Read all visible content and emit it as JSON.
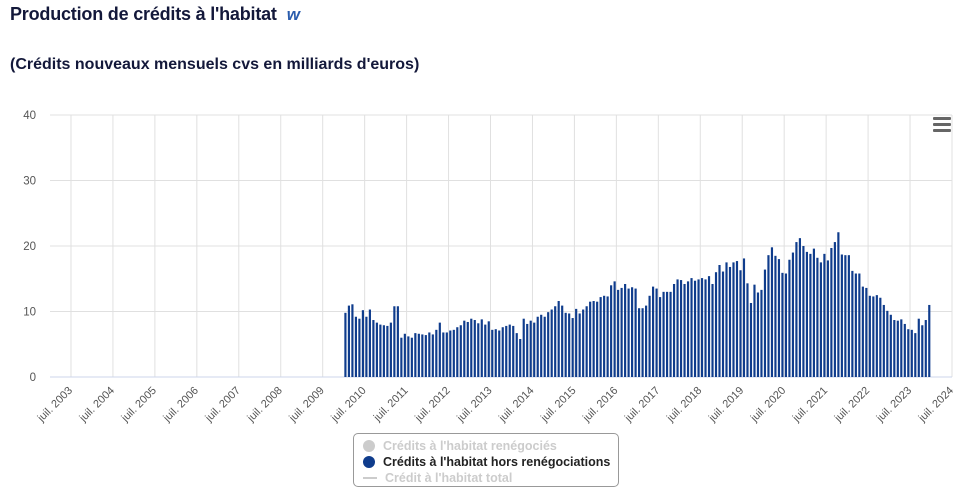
{
  "header": {
    "title": "Production de crédits à l'habitat",
    "icon": "w-logo-icon"
  },
  "subtitle": "(Crédits nouveaux mensuels cvs en milliards d'euros)",
  "colors": {
    "bar": "#0f3c8c",
    "grid": "#e0e0e0",
    "legend_active": "#0f3c8c",
    "legend_hidden": "#cccccc"
  },
  "menu": {
    "icon": "hamburger-menu-icon"
  },
  "legend": {
    "items": [
      {
        "label": "Crédits à l'habitat renégociés",
        "visible": false,
        "symbol": "circle"
      },
      {
        "label": "Crédits à l'habitat hors renégociations",
        "visible": true,
        "symbol": "circle"
      },
      {
        "label": "Crédit à l'habitat total",
        "visible": false,
        "symbol": "line"
      }
    ]
  },
  "chart_data": {
    "type": "bar",
    "ylim": [
      0,
      40
    ],
    "yticks": [
      "0",
      "10",
      "20",
      "30",
      "40"
    ],
    "xtick_labels": [
      "juil. 2003",
      "juil. 2004",
      "juil. 2005",
      "juil. 2006",
      "juil. 2007",
      "juil. 2008",
      "juil. 2009",
      "juil. 2010",
      "juil. 2011",
      "juil. 2012",
      "juil. 2013",
      "juil. 2014",
      "juil. 2015",
      "juil. 2016",
      "juil. 2017",
      "juil. 2018",
      "juil. 2019",
      "juil. 2020",
      "juil. 2021",
      "juil. 2022",
      "juil. 2023",
      "juil. 2024"
    ],
    "x_start": "2003-01",
    "x_end": "2024-07",
    "series": [
      {
        "name": "Crédits à l'habitat hors renégociations",
        "start": "2010-01",
        "values": [
          9.8,
          10.9,
          11.1,
          9.2,
          8.9,
          10.2,
          9.2,
          10.3,
          8.7,
          8.3,
          8.0,
          7.9,
          7.8,
          8.3,
          10.8,
          10.8,
          6.0,
          6.6,
          6.2,
          6.0,
          6.7,
          6.6,
          6.5,
          6.4,
          6.8,
          6.5,
          7.2,
          8.3,
          6.8,
          6.8,
          7.1,
          7.2,
          7.6,
          7.9,
          8.6,
          8.4,
          8.9,
          8.7,
          8.2,
          8.8,
          8.0,
          8.5,
          7.2,
          7.3,
          7.1,
          7.6,
          7.8,
          8.0,
          7.8,
          6.7,
          5.8,
          8.9,
          8.1,
          8.6,
          8.3,
          9.2,
          9.5,
          9.2,
          9.9,
          10.3,
          10.8,
          11.6,
          10.9,
          9.8,
          9.7,
          9.0,
          10.4,
          9.7,
          10.3,
          10.8,
          11.5,
          11.6,
          11.5,
          12.2,
          12.4,
          12.3,
          14.0,
          14.6,
          13.3,
          13.6,
          14.2,
          13.5,
          13.7,
          13.5,
          10.5,
          10.5,
          10.9,
          12.4,
          13.8,
          13.5,
          12.2,
          13.0,
          13.0,
          13.0,
          14.2,
          14.9,
          14.8,
          14.2,
          14.6,
          15.1,
          14.7,
          14.9,
          15.1,
          14.9,
          15.4,
          14.2,
          16.0,
          17.1,
          16.1,
          17.5,
          16.8,
          17.5,
          17.7,
          16.3,
          18.1,
          14.3,
          11.3,
          14.1,
          12.9,
          13.3,
          16.4,
          18.6,
          19.8,
          18.5,
          18.0,
          15.9,
          15.8,
          17.9,
          19.0,
          20.6,
          21.2,
          20.0,
          19.1,
          18.8,
          19.6,
          18.2,
          17.5,
          18.8,
          17.8,
          19.7,
          20.6,
          22.1,
          18.7,
          18.6,
          18.6,
          16.2,
          15.8,
          15.8,
          13.8,
          13.6,
          12.4,
          12.3,
          12.5,
          12.1,
          11.0,
          10.1,
          9.5,
          8.7,
          8.6,
          8.8,
          8.1,
          7.3,
          7.2,
          6.7,
          8.9,
          7.9,
          8.7,
          11.0
        ]
      }
    ]
  }
}
